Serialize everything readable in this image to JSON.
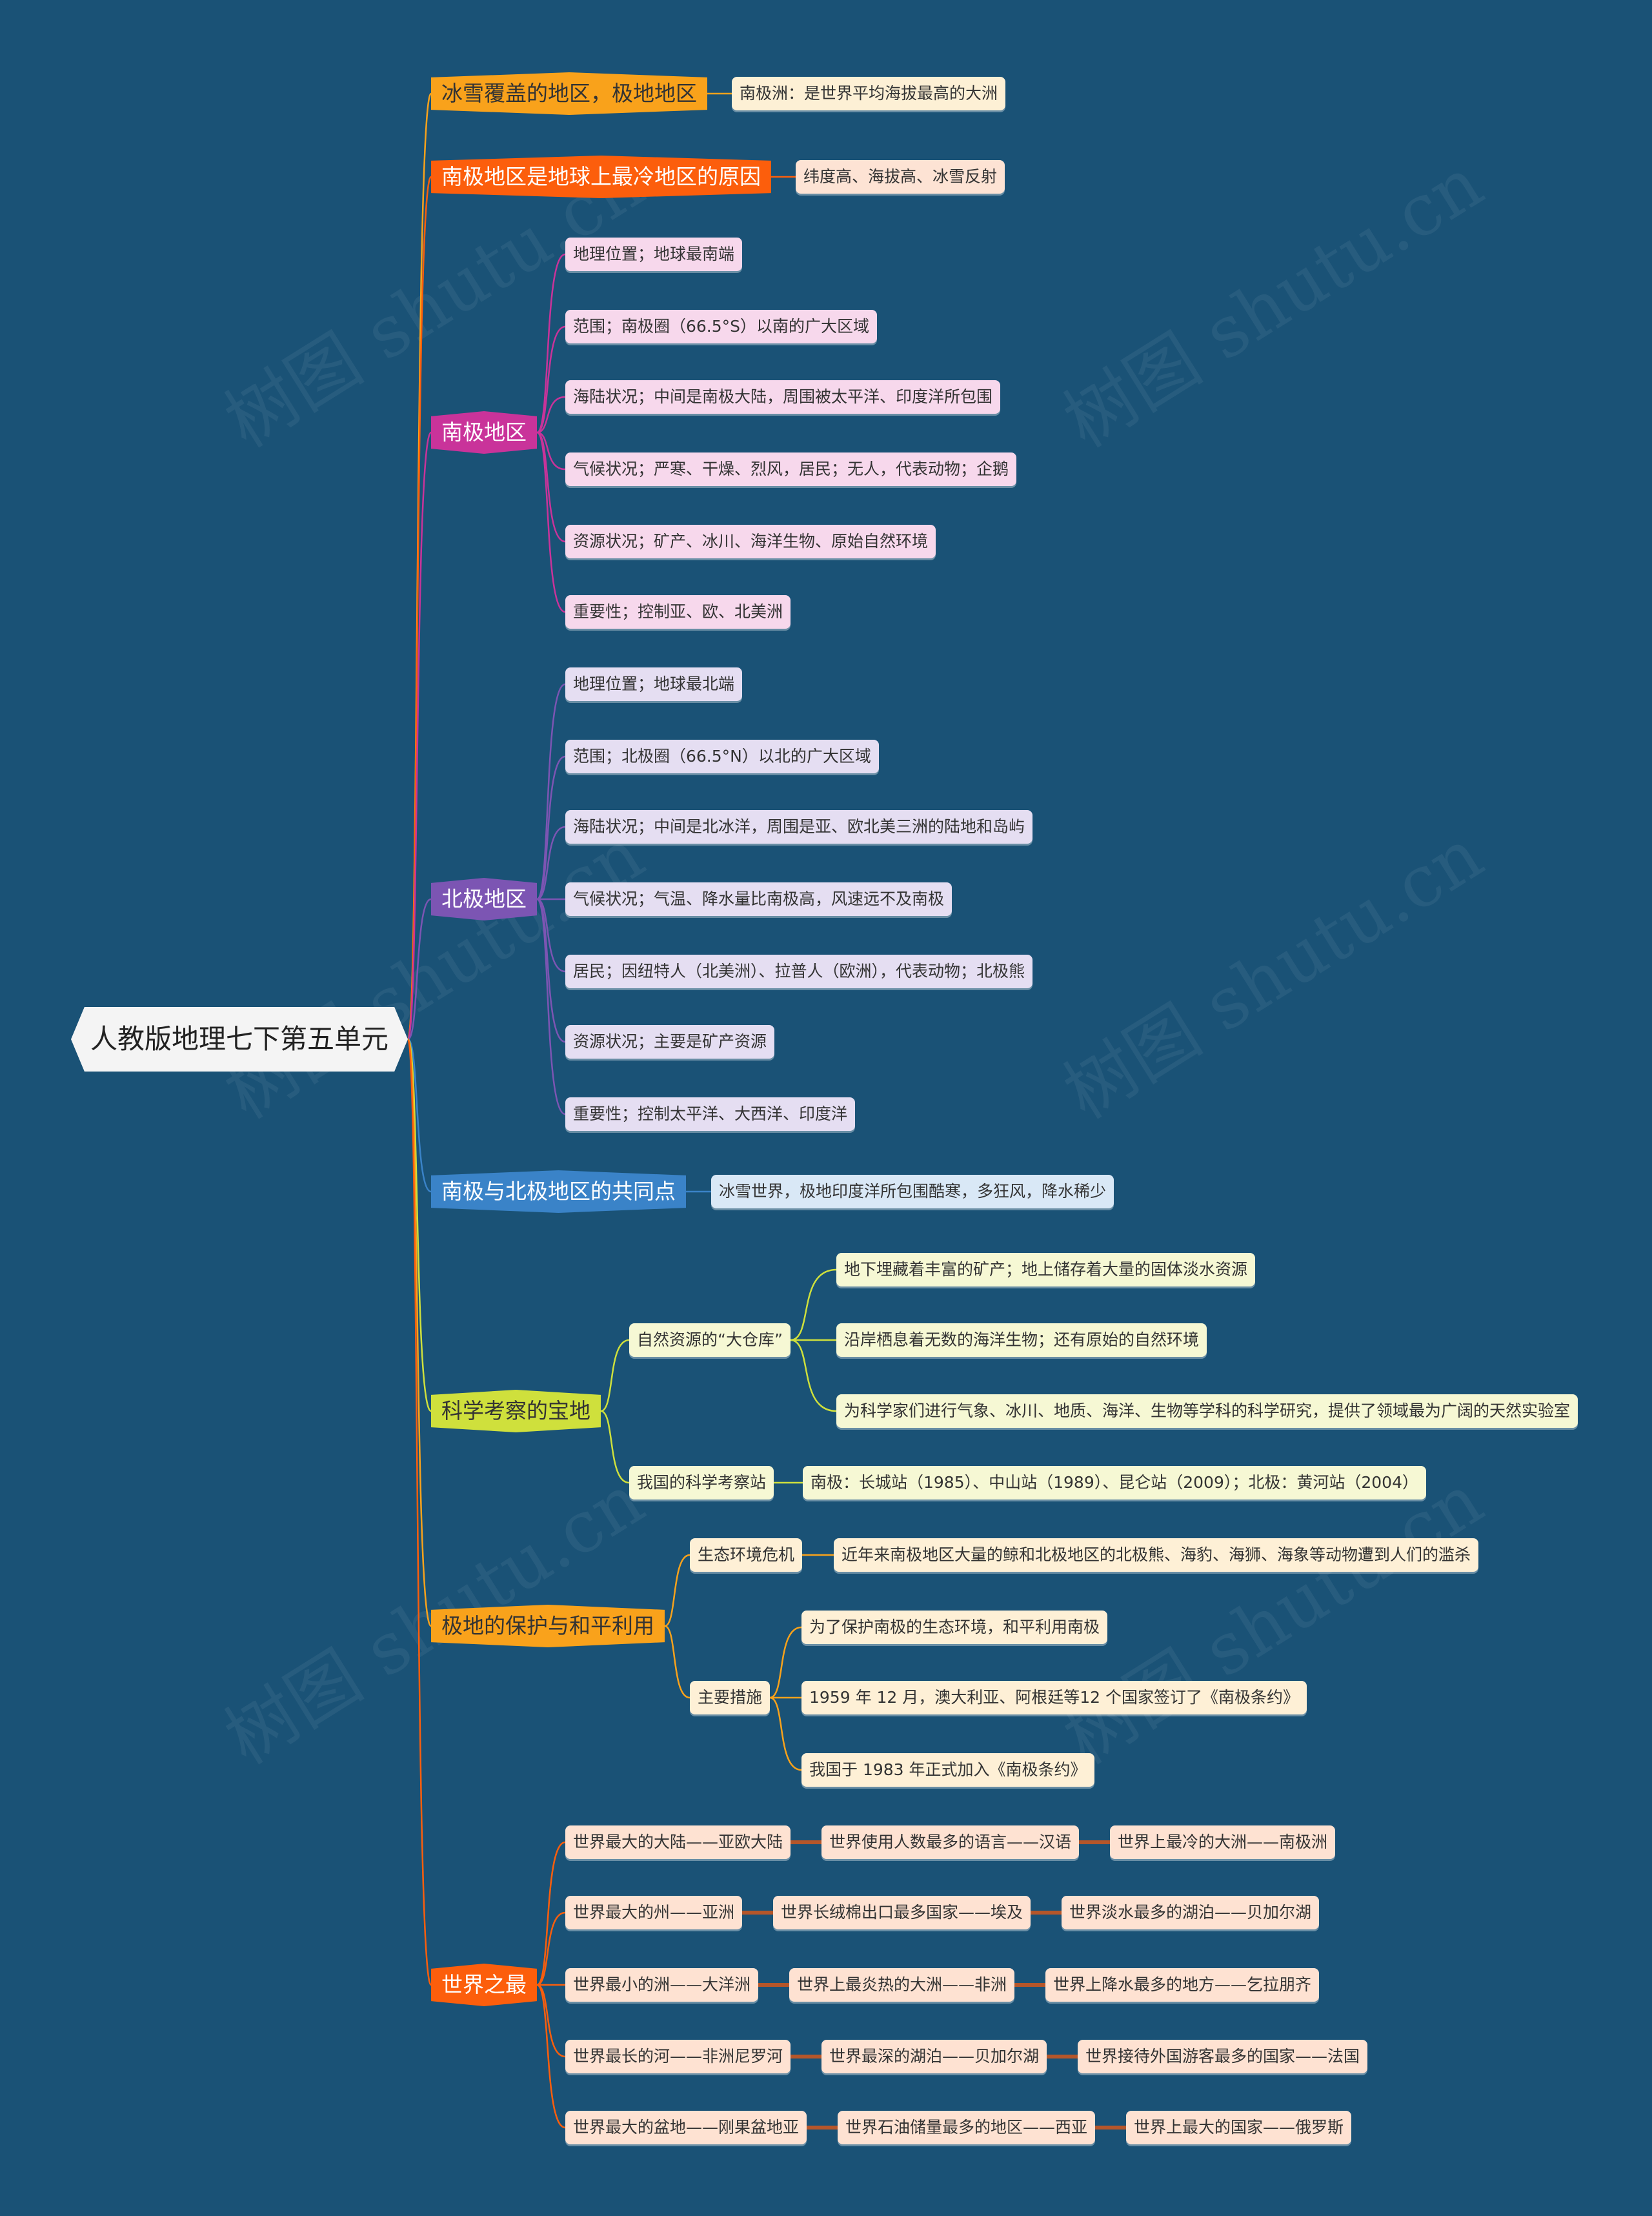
{
  "root": {
    "title": "人教版地理七下第五单元"
  },
  "watermark": "树图 shutu.cn",
  "colors": {
    "background": "#1a5276",
    "b1": "#f9a21b",
    "b2": "#fc5e0c",
    "b3": "#c9339a",
    "b4": "#7c55b3",
    "b5": "#3a83c8",
    "b6": "#cfe03c",
    "b7": "#f9a21b",
    "b8": "#fc5e0c"
  },
  "branches": [
    {
      "label": "冰雪覆盖的地区，极地地区",
      "children": [
        "南极洲：是世界平均海拔最高的大洲"
      ]
    },
    {
      "label": "南极地区是地球上最冷地区的原因",
      "children": [
        "纬度高、海拔高、冰雪反射"
      ]
    },
    {
      "label": "南极地区",
      "children": [
        "地理位置；地球最南端",
        "范围；南极圈（66.5°S）以南的广大区域",
        "海陆状况；中间是南极大陆，周围被太平洋、印度洋所包围",
        "气候状况；严寒、干燥、烈风，居民；无人，代表动物；企鹅",
        "资源状况；矿产、冰川、海洋生物、原始自然环境",
        "重要性；控制亚、欧、北美洲"
      ]
    },
    {
      "label": "北极地区",
      "children": [
        "地理位置；地球最北端",
        "范围；北极圈（66.5°N）以北的广大区域",
        "海陆状况；中间是北冰洋，周围是亚、欧北美三洲的陆地和岛屿",
        "气候状况；气温、降水量比南极高，风速远不及南极",
        "居民；因纽特人（北美洲）、拉普人（欧洲），代表动物；北极熊",
        "资源状况；主要是矿产资源",
        "重要性；控制太平洋、大西洋、印度洋"
      ]
    },
    {
      "label": "南极与北极地区的共同点",
      "children": [
        "冰雪世界，极地印度洋所包围酷寒，多狂风，降水稀少"
      ]
    },
    {
      "label": "科学考察的宝地",
      "subs": [
        {
          "label": "自然资源的“大仓库”",
          "children": [
            "地下埋藏着丰富的矿产；地上储存着大量的固体淡水资源",
            "沿岸栖息着无数的海洋生物；还有原始的自然环境",
            "为科学家们进行气象、冰川、地质、海洋、生物等学科的科学研究，提供了领域最为广阔的天然实验室"
          ]
        },
        {
          "label": "我国的科学考察站",
          "children": [
            "南极：长城站（1985）、中山站（1989）、昆仑站（2009）；北极：黄河站（2004）"
          ]
        }
      ]
    },
    {
      "label": "极地的保护与和平利用",
      "subs": [
        {
          "label": "生态环境危机",
          "children": [
            "近年来南极地区大量的鲸和北极地区的北极熊、海豹、海狮、海象等动物遭到人们的滥杀"
          ]
        },
        {
          "label": "主要措施",
          "children": [
            "为了保护南极的生态环境，和平利用南极",
            "1959 年 12 月，澳大利亚、阿根廷等12 个国家签订了《南极条约》",
            "我国于 1983 年正式加入《南极条约》"
          ]
        }
      ]
    },
    {
      "label": "世界之最",
      "rows": [
        [
          "世界最大的大陆——亚欧大陆",
          "世界使用人数最多的语言——汉语",
          "世界上最冷的大洲——南极洲"
        ],
        [
          "世界最大的州——亚洲",
          "世界长绒棉出口最多国家——埃及",
          "世界淡水最多的湖泊——贝加尔湖"
        ],
        [
          "世界最小的洲——大洋洲",
          "世界上最炎热的大洲——非洲",
          "世界上降水最多的地方——乞拉朋齐"
        ],
        [
          "世界最长的河——非洲尼罗河",
          "世界最深的湖泊——贝加尔湖",
          "世界接待外国游客最多的国家——法国"
        ],
        [
          "世界最大的盆地——刚果盆地亚",
          "世界石油储量最多的地区——西亚",
          "世界上最大的国家——俄罗斯"
        ]
      ]
    }
  ]
}
